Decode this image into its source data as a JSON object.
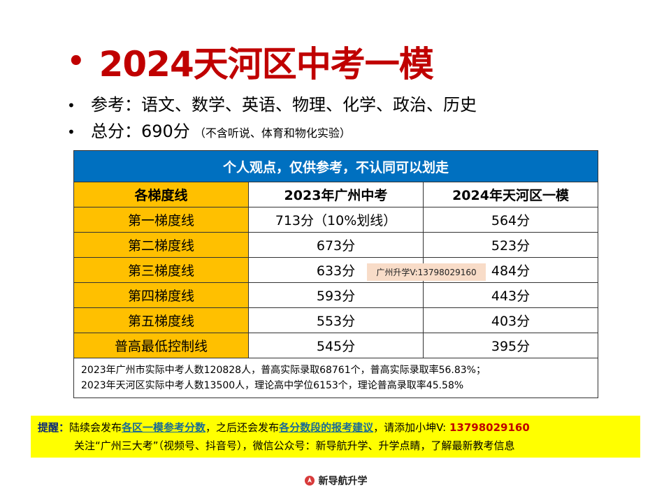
{
  "title": "2024天河区中考一模",
  "bullets": [
    {
      "text": "参考：语文、数学、英语、物理、化学、政治、历史",
      "small": ""
    },
    {
      "text": "总分：690分",
      "small": "（不含听说、体育和物化实验）"
    }
  ],
  "table": {
    "banner": "个人观点，仅供参考，不认同可以划走",
    "headers": [
      "各梯度线",
      "2023年广州中考",
      "2024年天河区一模"
    ],
    "rows": [
      [
        "第一梯度线",
        "713分（10%划线）",
        "564分"
      ],
      [
        "第二梯度线",
        "673分",
        "523分"
      ],
      [
        "第三梯度线",
        "633分",
        "484分"
      ],
      [
        "第四梯度线",
        "593分",
        "443分"
      ],
      [
        "第五梯度线",
        "553分",
        "403分"
      ],
      [
        "普高最低控制线",
        "545分",
        "395分"
      ]
    ],
    "notes": [
      "2023年广州市实际中考人数120828人，普高实际录取68761个，普高实际录取率56.83%；",
      "2023年天河区实际中考人数13500人，理论高中学位6153个，理论普高录取率45.58%"
    ]
  },
  "watermark": "广州升学V:13798029160",
  "tip": {
    "label": "提醒：",
    "t1": "陆续会发布",
    "link1": "各区一模参考分数",
    "t2": "，之后还会发布",
    "link2": "各分数段的报考建议",
    "t3": "，请添加小坤V: ",
    "phone": "13798029160",
    "line2": "关注“广州三大考”（视频号、抖音号），微信公众号：新导航升学、升学点睛，了解最新教考信息"
  },
  "footer": {
    "logo_icon": "location-pin-icon",
    "text": "新导航升学"
  }
}
